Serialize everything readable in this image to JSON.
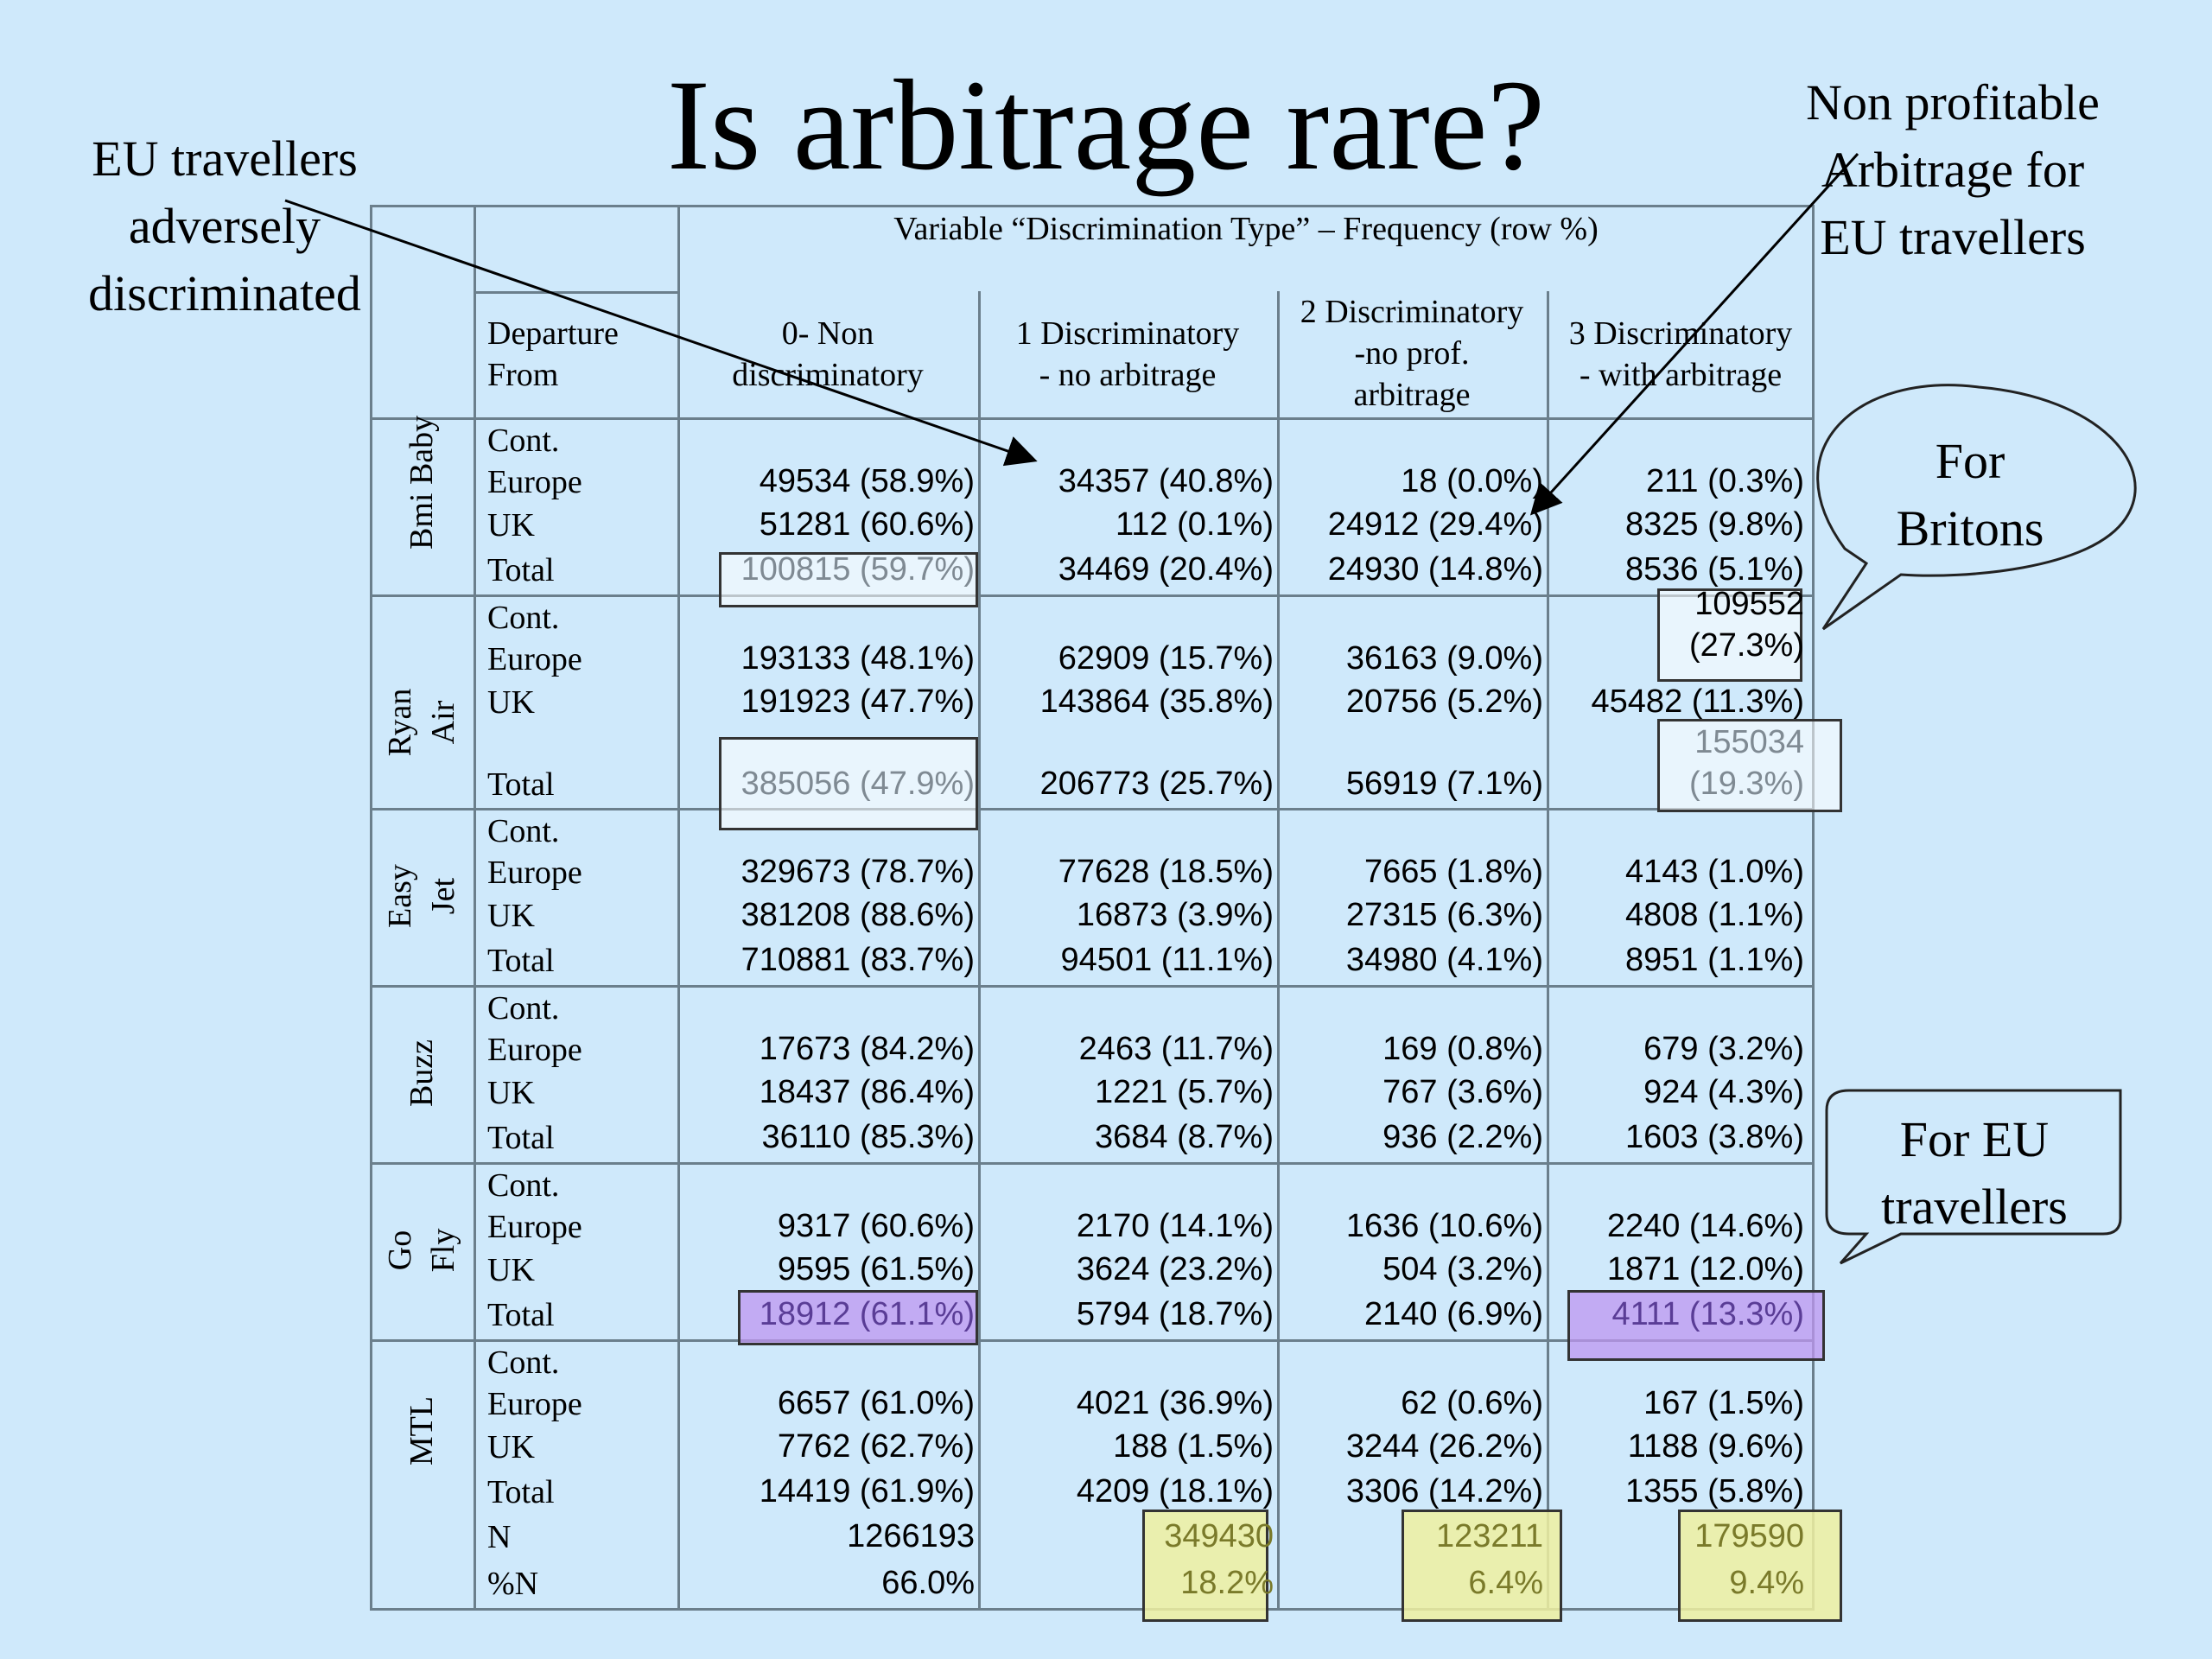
{
  "title": "Is arbitrage rare?",
  "annotations": {
    "eu_adverse": [
      "EU travellers",
      "adversely",
      "discriminated"
    ],
    "non_profitable": [
      "Non profitable",
      "Arbitrage for",
      "EU travellers"
    ],
    "for_britons": [
      "For",
      "Britons"
    ],
    "for_eu": [
      "For EU",
      "travellers"
    ]
  },
  "table": {
    "header_title": "Variable “Discrimination Type” – Frequency (row %)",
    "departure_header": [
      "Departure",
      "From"
    ],
    "columns": [
      [
        "0- Non",
        "discriminatory"
      ],
      [
        "1 Discriminatory",
        "- no arbitrage"
      ],
      [
        "2 Discriminatory",
        "-no prof.",
        "arbitrage"
      ],
      [
        "3 Discriminatory",
        "- with arbitrage"
      ]
    ],
    "row_labels": {
      "cont": "Cont.",
      "europe": "Europe",
      "uk": "UK",
      "total": "Total",
      "n": "N",
      "pn": "%N"
    },
    "groups": [
      {
        "airline": [
          "Bmi Baby"
        ],
        "europe": [
          "49534 (58.9%)",
          "34357 (40.8%)",
          "18 (0.0%)",
          "211 (0.3%)"
        ],
        "uk": [
          "51281 (60.6%)",
          "112 (0.1%)",
          "24912 (29.4%)",
          "8325 (9.8%)"
        ],
        "total": [
          "100815 (59.7%)",
          "34469 (20.4%)",
          "24930 (14.8%)",
          "8536 (5.1%)"
        ]
      },
      {
        "airline": [
          "Ryan",
          "Air"
        ],
        "europe": [
          "193133 (48.1%)",
          "62909 (15.7%)",
          "36163 (9.0%)",
          [
            "109552",
            "(27.3%)"
          ]
        ],
        "uk": [
          "191923 (47.7%)",
          "143864 (35.8%)",
          "20756 (5.2%)",
          "45482 (11.3%)"
        ],
        "total": [
          "385056 (47.9%)",
          "206773 (25.7%)",
          "56919 (7.1%)",
          [
            "155034",
            "(19.3%)"
          ]
        ]
      },
      {
        "airline": [
          "Easy",
          "Jet"
        ],
        "europe": [
          "329673 (78.7%)",
          "77628 (18.5%)",
          "7665 (1.8%)",
          "4143 (1.0%)"
        ],
        "uk": [
          "381208 (88.6%)",
          "16873 (3.9%)",
          "27315 (6.3%)",
          "4808 (1.1%)"
        ],
        "total": [
          "710881 (83.7%)",
          "94501 (11.1%)",
          "34980 (4.1%)",
          "8951 (1.1%)"
        ]
      },
      {
        "airline": [
          "Buzz"
        ],
        "europe": [
          "17673 (84.2%)",
          "2463 (11.7%)",
          "169 (0.8%)",
          "679 (3.2%)"
        ],
        "uk": [
          "18437 (86.4%)",
          "1221 (5.7%)",
          "767 (3.6%)",
          "924 (4.3%)"
        ],
        "total": [
          "36110 (85.3%)",
          "3684 (8.7%)",
          "936 (2.2%)",
          "1603 (3.8%)"
        ]
      },
      {
        "airline": [
          "Go",
          "Fly"
        ],
        "europe": [
          "9317 (60.6%)",
          "2170 (14.1%)",
          "1636 (10.6%)",
          "2240 (14.6%)"
        ],
        "uk": [
          "9595 (61.5%)",
          "3624 (23.2%)",
          "504 (3.2%)",
          "1871 (12.0%)"
        ],
        "total": [
          "18912 (61.1%)",
          "5794 (18.7%)",
          "2140 (6.9%)",
          "4111 (13.3%)"
        ]
      },
      {
        "airline": [
          "MTL"
        ],
        "europe": [
          "6657 (61.0%)",
          "4021 (36.9%)",
          "62 (0.6%)",
          "167 (1.5%)"
        ],
        "uk": [
          "7762 (62.7%)",
          "188 (1.5%)",
          "3244 (26.2%)",
          "1188 (9.6%)"
        ],
        "total": [
          "14419 (61.9%)",
          "4209 (18.1%)",
          "3306 (14.2%)",
          "1355 (5.8%)"
        ]
      }
    ],
    "n_row": [
      "1266193",
      "349430",
      "123211",
      "179590"
    ],
    "pn_row": [
      "66.0%",
      "18.2%",
      "6.4%",
      "9.4%"
    ]
  },
  "colors": {
    "background": "#cfe9fb",
    "highlight_purple": "#c39cf0",
    "highlight_yellow": "#eef0a0",
    "grid": "#6b7f8c"
  }
}
